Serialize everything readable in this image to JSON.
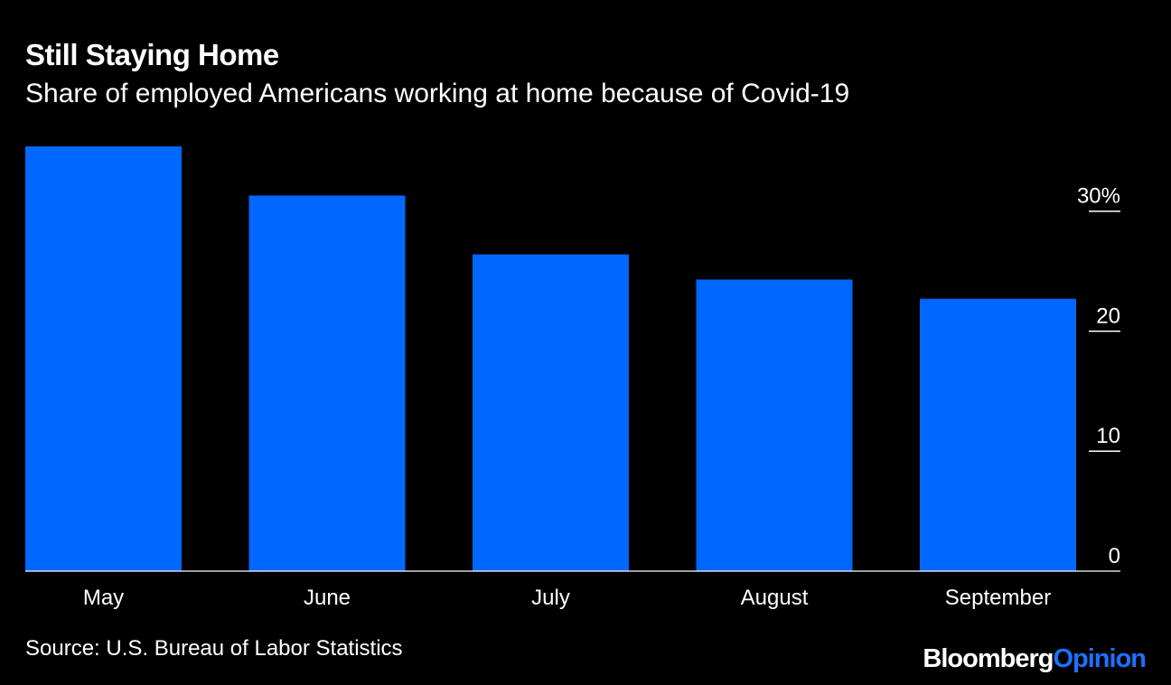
{
  "title": "Still Staying Home",
  "subtitle": "Share of employed Americans working at home because of Covid-19",
  "source": "Source: U.S. Bureau of Labor Statistics",
  "brand": {
    "name": "Bloomberg",
    "section": "Opinion"
  },
  "colors": {
    "background": "#000000",
    "bar": "#0068ff",
    "text": "#ffffff",
    "brand_accent": "#1a72ff"
  },
  "chart_data": {
    "type": "bar",
    "categories": [
      "May",
      "June",
      "July",
      "August",
      "September"
    ],
    "values": [
      35.4,
      31.3,
      26.4,
      24.3,
      22.7
    ],
    "yticks": [
      0,
      10,
      20,
      30
    ],
    "ytick_labels": [
      "0",
      "10",
      "20",
      "30%"
    ],
    "ylim": [
      0,
      35.4
    ],
    "axis_position": "right",
    "grid": false
  }
}
